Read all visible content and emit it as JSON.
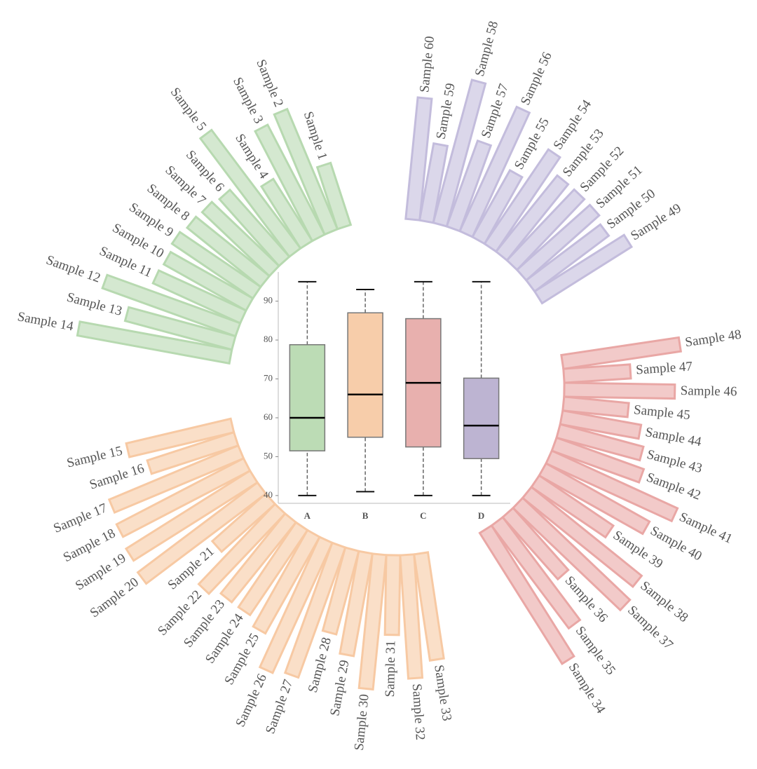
{
  "chart_data": [
    {
      "type": "radial_bar",
      "series": [
        {
          "color": "#b7d9b0",
          "categories": [
            "Sample 1",
            "Sample 2",
            "Sample 3",
            "Sample 4",
            "Sample 5",
            "Sample 6",
            "Sample 7",
            "Sample 8",
            "Sample 9",
            "Sample 10",
            "Sample 11",
            "Sample 12",
            "Sample 13",
            "Sample 14"
          ],
          "values": [
            40,
            80,
            76,
            45,
            91,
            55,
            57,
            58,
            60,
            58,
            59,
            87,
            68,
            95
          ]
        },
        {
          "color": "#f7c9a3",
          "categories": [
            "Sample 15",
            "Sample 16",
            "Sample 17",
            "Sample 18",
            "Sample 19",
            "Sample 20",
            "Sample 21",
            "Sample 22",
            "Sample 23",
            "Sample 24",
            "Sample 25",
            "Sample 26",
            "Sample 27",
            "Sample 28",
            "Sample 29",
            "Sample 30",
            "Sample 31",
            "Sample 32",
            "Sample 33"
          ],
          "values": [
            66,
            56,
            86,
            88,
            90,
            92,
            44,
            68,
            63,
            63,
            68,
            88,
            85,
            53,
            64,
            83,
            49,
            76,
            66
          ]
        },
        {
          "color": "#e9a7a5",
          "categories": [
            "Sample 34",
            "Sample 35",
            "Sample 36",
            "Sample 37",
            "Sample 38",
            "Sample 39",
            "Sample 40",
            "Sample 41",
            "Sample 42",
            "Sample 43",
            "Sample 44",
            "Sample 45",
            "Sample 46",
            "Sample 47",
            "Sample 48"
          ],
          "values": [
            95,
            79,
            51,
            91,
            87,
            55,
            73,
            85,
            57,
            53,
            49,
            40,
            68,
            41,
            73
          ]
        },
        {
          "color": "#c3bcdc",
          "categories": [
            "Sample 49",
            "Sample 50",
            "Sample 51",
            "Sample 52",
            "Sample 53",
            "Sample 54",
            "Sample 55",
            "Sample 56",
            "Sample 57",
            "Sample 58",
            "Sample 59",
            "Sample 60"
          ],
          "values": [
            65,
            57,
            60,
            60,
            60,
            70,
            47,
            84,
            56,
            91,
            48,
            75
          ]
        }
      ]
    },
    {
      "type": "box",
      "categories": [
        "A",
        "B",
        "C",
        "D"
      ],
      "colors": [
        "#bcdcb5",
        "#f7cdaa",
        "#e8b0ae",
        "#bdb4d2"
      ],
      "min": [
        40,
        41,
        40,
        40
      ],
      "q1": [
        51.5,
        55,
        52.5,
        49.5
      ],
      "median": [
        60,
        66,
        69,
        58
      ],
      "q3": [
        78.8,
        87,
        85.5,
        70.2
      ],
      "max": [
        95,
        93,
        95,
        95
      ],
      "ylim": [
        38,
        97.5
      ],
      "yticks": [
        40,
        50,
        60,
        70,
        80,
        90
      ]
    }
  ]
}
